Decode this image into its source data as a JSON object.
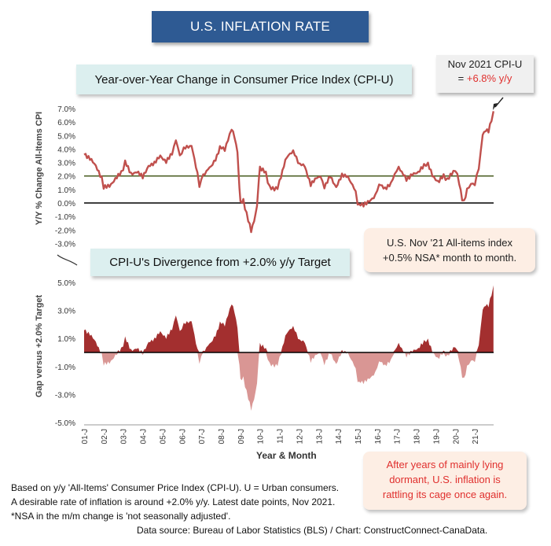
{
  "header": {
    "title": "U.S. INFLATION RATE"
  },
  "panel_top": {
    "title": "Year-over-Year Change in Consumer Price Index (CPI-U)",
    "ylabel": "Y/Y % Change All-Items CPI"
  },
  "panel_bottom": {
    "title": "CPI-U's Divergence from +2.0% y/y Target",
    "ylabel": "Gap versus +2.0% Target"
  },
  "callout_latest": {
    "line1": "Nov 2021 CPI-U",
    "line2_prefix": "= ",
    "line2_value": "+6.8% y/y"
  },
  "callout_monthly": {
    "line1": "U.S. Nov '21 All-items index",
    "line2": "+0.5% NSA* month to month."
  },
  "callout_comment": {
    "line1": "After years of mainly lying",
    "line2": "dormant, U.S. inflation is",
    "line3": "rattling its cage once again."
  },
  "xlabel": "Year & Month",
  "footnotes": [
    "Based on y/y 'All-Items' Consumer Price Index (CPI-U). U = Urban consumers.",
    "A desirable rate of inflation is around +2.0% y/y. Latest date points, Nov 2021.",
    "*NSA in the m/m change is 'not seasonally adjusted'."
  ],
  "source": "Data source: Bureau of Labor Statistics (BLS) / Chart: ConstructConnect-CanaData.",
  "colors": {
    "line": "#c0504d",
    "target": "#4f6228",
    "above": "#a32f2f",
    "below": "#d99694",
    "title_bg": "#2e5a93"
  },
  "chart_data": [
    {
      "type": "line",
      "title": "Year-over-Year Change in Consumer Price Index (CPI-U)",
      "ylabel": "Y/Y % Change All-Items CPI",
      "xlabel": "Year & Month",
      "ylim": [
        -3.0,
        7.0
      ],
      "yticks": [
        "-3.0%",
        "-2.0%",
        "-1.0%",
        "0.0%",
        "1.0%",
        "2.0%",
        "3.0%",
        "4.0%",
        "5.0%",
        "6.0%",
        "7.0%"
      ],
      "x_categories": [
        "01-J",
        "02-J",
        "03-J",
        "04-J",
        "05-J",
        "06-J",
        "07-J",
        "08-J",
        "09-J",
        "10-J",
        "11-J",
        "12-J",
        "13-J",
        "14-J",
        "15-J",
        "16-J",
        "17-J",
        "18-J",
        "19-J",
        "20-J",
        "21-J"
      ],
      "reference_line": {
        "value": 2.0
      },
      "anchors": [
        [
          2001.0,
          3.7
        ],
        [
          2001.3,
          3.3
        ],
        [
          2001.6,
          2.7
        ],
        [
          2001.9,
          1.9
        ],
        [
          2002.0,
          1.1
        ],
        [
          2002.3,
          1.3
        ],
        [
          2002.6,
          1.8
        ],
        [
          2002.9,
          2.2
        ],
        [
          2003.1,
          3.0
        ],
        [
          2003.4,
          2.2
        ],
        [
          2003.7,
          2.3
        ],
        [
          2004.0,
          1.9
        ],
        [
          2004.3,
          2.8
        ],
        [
          2004.6,
          2.9
        ],
        [
          2004.9,
          3.5
        ],
        [
          2005.2,
          3.1
        ],
        [
          2005.5,
          3.6
        ],
        [
          2005.7,
          4.7
        ],
        [
          2005.9,
          3.5
        ],
        [
          2006.1,
          4.0
        ],
        [
          2006.5,
          4.3
        ],
        [
          2006.8,
          2.1
        ],
        [
          2006.9,
          1.3
        ],
        [
          2007.1,
          2.1
        ],
        [
          2007.5,
          2.7
        ],
        [
          2007.8,
          3.5
        ],
        [
          2007.95,
          4.1
        ],
        [
          2008.2,
          4.0
        ],
        [
          2008.45,
          5.0
        ],
        [
          2008.55,
          5.6
        ],
        [
          2008.7,
          4.9
        ],
        [
          2008.85,
          3.7
        ],
        [
          2008.95,
          1.1
        ],
        [
          2009.0,
          0.0
        ],
        [
          2009.15,
          0.2
        ],
        [
          2009.4,
          -1.3
        ],
        [
          2009.55,
          -2.1
        ],
        [
          2009.7,
          -1.3
        ],
        [
          2009.85,
          -0.2
        ],
        [
          2009.95,
          1.8
        ],
        [
          2010.0,
          2.6
        ],
        [
          2010.3,
          2.2
        ],
        [
          2010.5,
          1.1
        ],
        [
          2010.9,
          1.1
        ],
        [
          2011.0,
          1.6
        ],
        [
          2011.3,
          3.2
        ],
        [
          2011.7,
          3.9
        ],
        [
          2011.95,
          3.0
        ],
        [
          2012.3,
          2.7
        ],
        [
          2012.6,
          1.4
        ],
        [
          2012.9,
          1.8
        ],
        [
          2013.1,
          2.0
        ],
        [
          2013.3,
          1.1
        ],
        [
          2013.6,
          2.0
        ],
        [
          2013.9,
          1.2
        ],
        [
          2014.2,
          2.0
        ],
        [
          2014.5,
          2.0
        ],
        [
          2014.9,
          0.8
        ],
        [
          2015.0,
          -0.1
        ],
        [
          2015.3,
          -0.2
        ],
        [
          2015.6,
          0.2
        ],
        [
          2015.9,
          0.5
        ],
        [
          2016.1,
          1.4
        ],
        [
          2016.4,
          1.0
        ],
        [
          2016.7,
          1.5
        ],
        [
          2016.9,
          2.1
        ],
        [
          2017.1,
          2.7
        ],
        [
          2017.5,
          1.7
        ],
        [
          2017.8,
          2.2
        ],
        [
          2018.1,
          2.2
        ],
        [
          2018.4,
          2.8
        ],
        [
          2018.6,
          2.9
        ],
        [
          2018.9,
          1.9
        ],
        [
          2019.1,
          1.6
        ],
        [
          2019.4,
          2.0
        ],
        [
          2019.6,
          1.7
        ],
        [
          2019.9,
          2.3
        ],
        [
          2020.0,
          2.5
        ],
        [
          2020.2,
          1.5
        ],
        [
          2020.35,
          0.3
        ],
        [
          2020.45,
          0.1
        ],
        [
          2020.6,
          1.0
        ],
        [
          2020.8,
          1.4
        ],
        [
          2021.0,
          1.4
        ],
        [
          2021.2,
          2.6
        ],
        [
          2021.4,
          5.0
        ],
        [
          2021.55,
          5.4
        ],
        [
          2021.7,
          5.4
        ],
        [
          2021.85,
          6.2
        ],
        [
          2021.95,
          6.8
        ]
      ]
    },
    {
      "type": "area",
      "title": "CPI-U's Divergence from +2.0% y/y Target",
      "ylabel": "Gap versus +2.0% Target",
      "xlabel": "Year & Month",
      "ylim": [
        -5.0,
        5.0
      ],
      "yticks": [
        "5.0%",
        "3.0%",
        "1.0%",
        "-1.0%",
        "-3.0%",
        "-5.0%"
      ],
      "x_categories": [
        "01-J",
        "02-J",
        "03-J",
        "04-J",
        "05-J",
        "06-J",
        "07-J",
        "08-J",
        "09-J",
        "10-J",
        "11-J",
        "12-J",
        "13-J",
        "14-J",
        "15-J",
        "16-J",
        "17-J",
        "18-J",
        "19-J",
        "20-J",
        "21-J"
      ],
      "derived_from": "y/y CPI-U minus 2.0"
    }
  ]
}
